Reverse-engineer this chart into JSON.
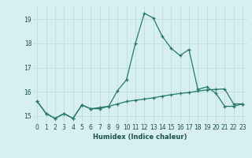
{
  "xlabel": "Humidex (Indice chaleur)",
  "x_values": [
    0,
    1,
    2,
    3,
    4,
    5,
    6,
    7,
    8,
    9,
    10,
    11,
    12,
    13,
    14,
    15,
    16,
    17,
    18,
    19,
    20,
    21,
    22,
    23
  ],
  "line1_y": [
    15.6,
    15.1,
    14.9,
    15.1,
    14.9,
    15.45,
    15.3,
    15.3,
    15.4,
    16.05,
    16.5,
    18.0,
    19.25,
    19.05,
    18.3,
    17.8,
    17.5,
    17.75,
    16.1,
    16.2,
    15.95,
    15.4,
    15.4,
    15.5
  ],
  "line2_y": [
    15.6,
    15.1,
    14.9,
    15.1,
    14.9,
    15.45,
    15.3,
    15.35,
    15.4,
    15.5,
    15.6,
    15.65,
    15.7,
    15.75,
    15.82,
    15.88,
    15.93,
    15.97,
    16.03,
    16.08,
    16.1,
    16.12,
    15.5,
    15.5
  ],
  "line_color": "#267868",
  "bg_color": "#d8efef",
  "grid_color": "#c0dede",
  "ylim": [
    14.7,
    19.6
  ],
  "yticks": [
    15,
    16,
    17,
    18,
    19
  ],
  "xlim": [
    -0.5,
    23.5
  ],
  "tick_fontsize": 5.5,
  "xlabel_fontsize": 6.0
}
